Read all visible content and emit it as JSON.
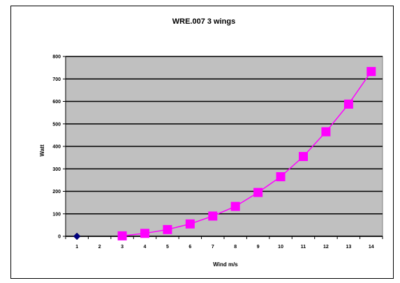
{
  "chart_data": {
    "type": "line",
    "title": "WRE.007 3 wings",
    "xlabel": "Wind m/s",
    "ylabel": "Watt",
    "categories": [
      "1",
      "2",
      "3",
      "4",
      "5",
      "6",
      "7",
      "8",
      "9",
      "10",
      "11",
      "12",
      "13",
      "14"
    ],
    "ylim": [
      0,
      800
    ],
    "yticks": [
      0,
      100,
      200,
      300,
      400,
      500,
      600,
      700,
      800
    ],
    "grid": true,
    "legend": "none",
    "plot_background": "#c0c0c0",
    "series": [
      {
        "values": [
          0,
          null,
          null,
          null,
          null,
          null,
          null,
          null,
          null,
          null,
          null,
          null,
          null,
          null
        ],
        "color": "#000080",
        "marker": "diamond",
        "line": false
      },
      {
        "values": [
          null,
          null,
          2,
          13,
          30,
          55,
          90,
          133,
          195,
          265,
          355,
          465,
          588,
          733
        ],
        "color": "#ff00ff",
        "marker": "square",
        "line": true
      }
    ]
  }
}
